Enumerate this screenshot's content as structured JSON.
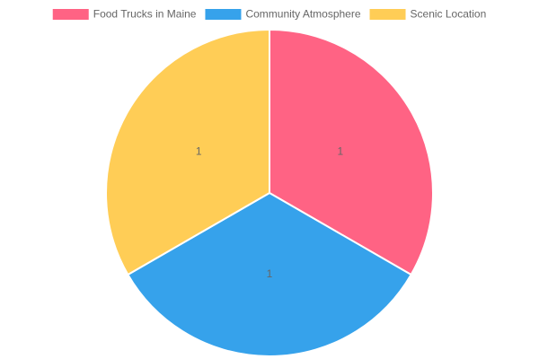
{
  "chart_data": {
    "type": "pie",
    "categories": [
      "Food Trucks in Maine",
      "Community Atmosphere",
      "Scenic Location"
    ],
    "values": [
      1,
      1,
      1
    ],
    "colors": [
      "#ff6384",
      "#36a2eb",
      "#ffcd56"
    ],
    "legend": "top"
  }
}
